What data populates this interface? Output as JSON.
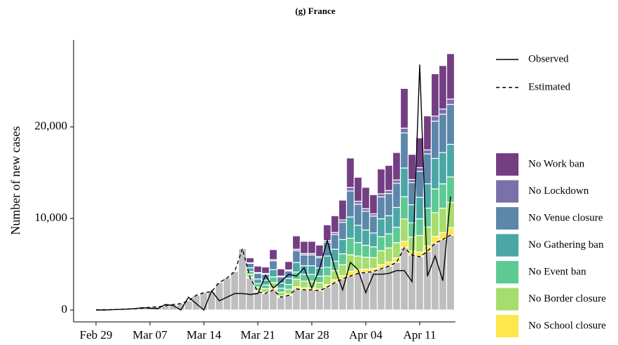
{
  "chart_data": {
    "type": "bar",
    "title": "(g) France",
    "y_label": "Number of new cases",
    "categories": [
      "Feb 29",
      null,
      null,
      null,
      null,
      null,
      null,
      "Mar 07",
      null,
      null,
      null,
      null,
      null,
      null,
      "Mar 14",
      null,
      null,
      null,
      null,
      null,
      null,
      "Mar 21",
      null,
      null,
      null,
      null,
      null,
      null,
      "Mar 28",
      null,
      null,
      null,
      null,
      null,
      null,
      "Apr 04",
      null,
      null,
      null,
      null,
      null,
      null,
      "Apr 11",
      null,
      null,
      null,
      null
    ],
    "ylim": [
      -1300,
      29500
    ],
    "yticks": [
      0,
      {
        "value": 10000,
        "label": "10,000"
      },
      {
        "value": 20000,
        "label": "20,000"
      }
    ],
    "stacked": true,
    "series": [
      {
        "type": "bar",
        "color": "#bebebe",
        "values": [
          20,
          30,
          40,
          60,
          100,
          150,
          200,
          300,
          350,
          450,
          600,
          700,
          1000,
          1600,
          1900,
          2000,
          3000,
          3500,
          4200,
          6700,
          3500,
          2000,
          1800,
          2200,
          1400,
          1600,
          2300,
          2200,
          2200,
          2100,
          2500,
          3000,
          3400,
          3700,
          4000,
          4100,
          4200,
          4500,
          4800,
          5200,
          6800,
          6000,
          5800,
          6400,
          7300,
          7700,
          8200
        ]
      },
      {
        "type": "bar",
        "name": "No School closure",
        "color": "#fde74c",
        "values": [
          null,
          null,
          null,
          null,
          null,
          null,
          null,
          null,
          null,
          null,
          null,
          null,
          null,
          null,
          null,
          null,
          null,
          null,
          null,
          null,
          90,
          110,
          120,
          180,
          120,
          150,
          230,
          210,
          210,
          200,
          270,
          290,
          340,
          520,
          420,
          370,
          340,
          440,
          440,
          480,
          700,
          440,
          520,
          590,
          740,
          760,
          790
        ]
      },
      {
        "type": "bar",
        "name": "No Border closure",
        "color": "#a6dd6e",
        "values": [
          null,
          null,
          null,
          null,
          null,
          null,
          null,
          null,
          null,
          null,
          null,
          null,
          null,
          null,
          null,
          null,
          null,
          null,
          null,
          null,
          310,
          390,
          410,
          620,
          430,
          520,
          810,
          740,
          740,
          700,
          950,
          1020,
          1200,
          1810,
          1470,
          1300,
          1180,
          1530,
          1540,
          1680,
          2440,
          1540,
          1820,
          2070,
          2590,
          2660,
          2770
        ]
      },
      {
        "type": "bar",
        "name": "No Event ban",
        "color": "#5fc993",
        "values": [
          null,
          null,
          null,
          null,
          null,
          null,
          null,
          null,
          null,
          null,
          null,
          null,
          null,
          null,
          null,
          null,
          null,
          null,
          null,
          null,
          310,
          390,
          410,
          620,
          430,
          520,
          810,
          740,
          740,
          700,
          950,
          1020,
          1200,
          1810,
          1470,
          1300,
          1180,
          1530,
          1540,
          1680,
          2440,
          1540,
          1820,
          2070,
          2590,
          2660,
          2770
        ]
      },
      {
        "type": "bar",
        "name": "No Gathering ban",
        "color": "#4aa7a6",
        "values": [
          null,
          null,
          null,
          null,
          null,
          null,
          null,
          null,
          null,
          null,
          null,
          null,
          null,
          null,
          null,
          null,
          null,
          null,
          null,
          null,
          400,
          500,
          520,
          790,
          560,
          670,
          1040,
          950,
          950,
          900,
          1220,
          1310,
          1550,
          2320,
          1890,
          1670,
          1510,
          1960,
          1980,
          2160,
          3130,
          1980,
          2340,
          2660,
          3330,
          3420,
          3560
        ]
      },
      {
        "type": "bar",
        "name": "No Venue closure",
        "color": "#5c86aa",
        "values": [
          null,
          null,
          null,
          null,
          null,
          null,
          null,
          null,
          null,
          null,
          null,
          null,
          null,
          null,
          null,
          null,
          null,
          null,
          null,
          null,
          480,
          620,
          640,
          970,
          680,
          810,
          1280,
          1170,
          1170,
          1100,
          1500,
          1610,
          1890,
          2840,
          2310,
          2050,
          1850,
          2400,
          2420,
          2640,
          3830,
          2420,
          2860,
          3260,
          4070,
          4180,
          4360
        ]
      },
      {
        "type": "bar",
        "name": "No Lockdown",
        "color": "#7a71ab",
        "values": [
          null,
          null,
          null,
          null,
          null,
          null,
          null,
          null,
          null,
          null,
          null,
          null,
          null,
          null,
          null,
          null,
          null,
          null,
          null,
          null,
          70,
          80,
          90,
          130,
          90,
          110,
          170,
          160,
          160,
          150,
          200,
          220,
          260,
          390,
          320,
          280,
          250,
          330,
          330,
          360,
          520,
          330,
          390,
          440,
          560,
          570,
          590
        ]
      },
      {
        "type": "bar",
        "name": "No Work ban",
        "color": "#743e83",
        "values": [
          null,
          null,
          null,
          null,
          null,
          null,
          null,
          null,
          null,
          null,
          null,
          null,
          null,
          null,
          null,
          null,
          null,
          null,
          null,
          null,
          540,
          710,
          710,
          1090,
          790,
          920,
          1460,
          1330,
          1330,
          1250,
          1710,
          1830,
          2160,
          3210,
          2620,
          2330,
          2090,
          2710,
          2750,
          3000,
          4340,
          2750,
          3250,
          3710,
          4620,
          4750,
          4960
        ]
      },
      {
        "type": "line",
        "name": "Observed",
        "color": "#000000",
        "dashed": false,
        "values": [
          0,
          0,
          30,
          60,
          100,
          150,
          250,
          200,
          150,
          600,
          500,
          0,
          1400,
          700,
          0,
          2100,
          1000,
          1400,
          1800,
          1800,
          1700,
          1800,
          3800,
          2400,
          3100,
          3900,
          3700,
          4600,
          2400,
          4500,
          7600,
          4500,
          2200,
          5200,
          4400,
          1900,
          3900,
          3900,
          4000,
          4300,
          4300,
          3100,
          26800,
          3700,
          5900,
          3200,
          12400
        ]
      },
      {
        "type": "line",
        "name": "Estimated",
        "color": "#000000",
        "dashed": true,
        "values": [
          20,
          30,
          40,
          60,
          100,
          150,
          200,
          300,
          350,
          450,
          600,
          700,
          1000,
          1600,
          1900,
          2000,
          3000,
          3500,
          4200,
          6700,
          3500,
          2000,
          1800,
          2200,
          1400,
          1600,
          2300,
          2200,
          2200,
          2100,
          2500,
          3000,
          3400,
          3700,
          4000,
          4100,
          4200,
          4500,
          4800,
          5200,
          6800,
          6000,
          5800,
          6400,
          7300,
          7700,
          8200
        ]
      }
    ]
  }
}
